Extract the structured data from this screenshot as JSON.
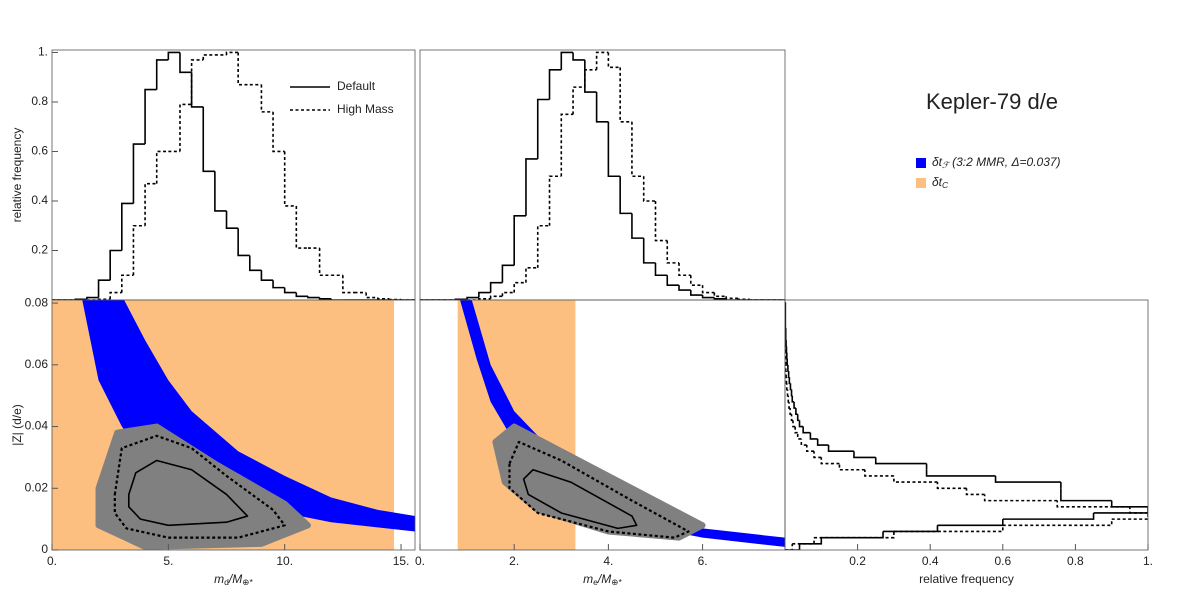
{
  "figure": {
    "title": "Kepler-79 d/e",
    "legend": [
      {
        "parts": [
          "δt",
          "ℱ",
          " (3:2 MMR, Δ=0.037)"
        ],
        "color": "#0000ff"
      },
      {
        "parts": [
          "δt",
          "C"
        ],
        "color": "#fdbf80"
      }
    ]
  },
  "chart_data": [
    {
      "type": "histogram",
      "ylabel": "relative frequency",
      "legend": "top-right",
      "xlim": [
        0,
        15.6
      ],
      "ylim": [
        0,
        1.01
      ],
      "yticks": [
        0.2,
        0.4,
        0.6,
        0.8,
        {
          "value": 1,
          "label": "1."
        }
      ],
      "bins": [
        0,
        0.5,
        1,
        1.5,
        2,
        2.5,
        3,
        3.5,
        4,
        4.5,
        5,
        5.5,
        6,
        6.5,
        7,
        7.5,
        8,
        8.5,
        9,
        9.5,
        10,
        10.5,
        11,
        11.5,
        12,
        12.5,
        13,
        13.5,
        14,
        14.5,
        15,
        15.5,
        16
      ],
      "series": [
        {
          "name": "Default",
          "color": "#000000",
          "dash": "solid",
          "values": [
            0,
            0,
            0.003,
            0.01,
            0.08,
            0.2,
            0.39,
            0.63,
            0.85,
            0.97,
            1.0,
            0.92,
            0.78,
            0.52,
            0.36,
            0.29,
            0.18,
            0.12,
            0.08,
            0.05,
            0.03,
            0.015,
            0.01,
            0.005,
            0,
            0,
            0,
            0,
            0,
            0,
            0,
            0
          ]
        },
        {
          "name": "High Mass",
          "color": "#000000",
          "dash": "dotted",
          "values": [
            0,
            0,
            0,
            0,
            0.003,
            0.03,
            0.1,
            0.3,
            0.47,
            0.6,
            0.6,
            0.79,
            0.97,
            0.99,
            0.99,
            1.0,
            0.87,
            0.87,
            0.76,
            0.6,
            0.38,
            0.21,
            0.21,
            0.1,
            0.1,
            0.03,
            0.03,
            0.01,
            0.005,
            0.002,
            0,
            0
          ]
        }
      ]
    },
    {
      "type": "histogram",
      "xlim": [
        0,
        7.75
      ],
      "ylim": [
        0,
        1.01
      ],
      "bins": [
        0,
        0.25,
        0.5,
        0.75,
        1,
        1.25,
        1.5,
        1.75,
        2,
        2.25,
        2.5,
        2.75,
        3,
        3.25,
        3.5,
        3.75,
        4,
        4.25,
        4.5,
        4.75,
        5,
        5.25,
        5.5,
        5.75,
        6,
        6.25,
        6.5,
        6.75,
        7,
        7.25,
        7.5,
        7.75
      ],
      "series": [
        {
          "color": "#000000",
          "dash": "solid",
          "values": [
            0,
            0,
            0,
            0.003,
            0.01,
            0.03,
            0.07,
            0.14,
            0.34,
            0.57,
            0.81,
            0.93,
            1.0,
            0.97,
            0.84,
            0.72,
            0.5,
            0.35,
            0.25,
            0.15,
            0.1,
            0.06,
            0.04,
            0.02,
            0.01,
            0.005,
            0,
            0,
            0,
            0,
            0
          ]
        },
        {
          "color": "#000000",
          "dash": "dotted",
          "values": [
            0,
            0,
            0,
            0,
            0,
            0.005,
            0.015,
            0.03,
            0.07,
            0.13,
            0.3,
            0.5,
            0.75,
            0.86,
            0.93,
            1.0,
            0.94,
            0.72,
            0.5,
            0.4,
            0.24,
            0.15,
            0.1,
            0.06,
            0.03,
            0.015,
            0.007,
            0.003,
            0,
            0,
            0
          ]
        }
      ]
    },
    {
      "type": "density",
      "ylabel": "|Z| (d/e)",
      "xlabel": [
        "m",
        "d",
        "/M",
        "⊕*"
      ],
      "xlim": [
        0,
        15.6
      ],
      "ylim": [
        0,
        0.081
      ],
      "xticks": [
        {
          "value": 0,
          "label": "0."
        },
        {
          "value": 5,
          "label": "5."
        },
        {
          "value": 10,
          "label": "10."
        },
        {
          "value": 15,
          "label": "15."
        }
      ],
      "yticks": [
        0,
        0.02,
        0.04,
        0.06,
        0.08
      ],
      "region": {
        "color": "#fdbf80",
        "x": [
          0,
          14.7
        ],
        "y": [
          0,
          0.081
        ]
      },
      "band": {
        "color": "#0000ff",
        "upper": {
          "x": [
            3.1,
            4,
            5,
            6,
            8,
            10,
            12,
            14,
            15.6
          ],
          "y": [
            0.081,
            0.068,
            0.055,
            0.045,
            0.032,
            0.024,
            0.017,
            0.013,
            0.011
          ]
        },
        "lower": {
          "x": [
            1.3,
            2,
            3,
            4,
            6,
            8,
            10,
            12,
            15.6
          ],
          "y": [
            0.081,
            0.055,
            0.04,
            0.03,
            0.02,
            0.016,
            0.012,
            0.009,
            0.006
          ]
        }
      },
      "cloud": {
        "color": "#808080",
        "x": [
          2,
          2.8,
          4.5,
          7,
          10,
          11,
          9,
          4,
          2
        ],
        "y": [
          0.02,
          0.038,
          0.04,
          0.028,
          0.015,
          0.008,
          0.002,
          0.001,
          0.008
        ]
      },
      "contours": [
        {
          "dash": "dotted",
          "x": [
            2.7,
            3,
            4.5,
            6,
            7.5,
            9.5,
            10,
            8,
            5,
            3.2,
            2.7
          ],
          "y": [
            0.018,
            0.033,
            0.037,
            0.033,
            0.024,
            0.013,
            0.008,
            0.004,
            0.004,
            0.007,
            0.012
          ]
        },
        {
          "dash": "solid",
          "x": [
            3.3,
            3.6,
            4.5,
            6,
            7.5,
            8.4,
            7.5,
            5,
            3.8,
            3.3
          ],
          "y": [
            0.018,
            0.025,
            0.029,
            0.026,
            0.018,
            0.011,
            0.009,
            0.008,
            0.01,
            0.014
          ]
        }
      ]
    },
    {
      "type": "density",
      "xlabel": [
        "m",
        "e",
        "/M",
        "⊕*"
      ],
      "xlim": [
        0,
        7.75
      ],
      "ylim": [
        0,
        0.081
      ],
      "xticks": [
        {
          "value": 0,
          "label": "0."
        },
        {
          "value": 2,
          "label": "2."
        },
        {
          "value": 4,
          "label": "4."
        },
        {
          "value": 6,
          "label": "6."
        }
      ],
      "region": {
        "color": "#fdbf80",
        "x": [
          0.8,
          3.3
        ],
        "y": [
          0,
          0.081
        ]
      },
      "band": {
        "color": "#0000ff",
        "upper": {
          "x": [
            1.1,
            1.5,
            2,
            2.5,
            3,
            4,
            5,
            6,
            7.75
          ],
          "y": [
            0.081,
            0.06,
            0.045,
            0.037,
            0.031,
            0.021,
            0.013,
            0.007,
            0.004
          ]
        },
        "lower": {
          "x": [
            0.85,
            1.2,
            1.5,
            2,
            3,
            4,
            5,
            6,
            7.75
          ],
          "y": [
            0.081,
            0.062,
            0.048,
            0.035,
            0.02,
            0.012,
            0.007,
            0.004,
            0.001
          ]
        }
      },
      "cloud": {
        "color": "#808080",
        "x": [
          1.6,
          2,
          3,
          4.5,
          6,
          5.5,
          4,
          2.5,
          1.8
        ],
        "y": [
          0.035,
          0.04,
          0.032,
          0.02,
          0.008,
          0.004,
          0.006,
          0.013,
          0.022
        ]
      },
      "contours": [
        {
          "dash": "dotted",
          "x": [
            1.9,
            2.1,
            3,
            4.5,
            5.7,
            5.4,
            4,
            2.5,
            1.9
          ],
          "y": [
            0.028,
            0.035,
            0.029,
            0.016,
            0.006,
            0.004,
            0.006,
            0.012,
            0.02
          ]
        },
        {
          "dash": "solid",
          "x": [
            2.2,
            2.4,
            3.2,
            4.5,
            4.6,
            4.2,
            3,
            2.3
          ],
          "y": [
            0.023,
            0.026,
            0.022,
            0.011,
            0.008,
            0.007,
            0.012,
            0.018
          ]
        }
      ]
    },
    {
      "type": "histogram",
      "orientation": "horizontal",
      "xlabel": "relative frequency",
      "xlim": [
        0,
        1.0
      ],
      "ylim": [
        0,
        0.081
      ],
      "xticks": [
        0.2,
        0.4,
        0.6,
        0.8,
        {
          "value": 1,
          "label": "1."
        }
      ],
      "bins": [
        0,
        0.002,
        0.004,
        0.006,
        0.008,
        0.01,
        0.012,
        0.014,
        0.016,
        0.018,
        0.02,
        0.022,
        0.024,
        0.026,
        0.028,
        0.03,
        0.032,
        0.034,
        0.036,
        0.038,
        0.04,
        0.042,
        0.044,
        0.046,
        0.048,
        0.05,
        0.052,
        0.054,
        0.056,
        0.058,
        0.06,
        0.062,
        0.064,
        0.066,
        0.068,
        0.07,
        0.072,
        0.074,
        0.076,
        0.078,
        0.08
      ],
      "series": [
        {
          "color": "#000000",
          "dash": "solid",
          "values": [
            0.04,
            0.1,
            0.27,
            0.42,
            0.6,
            0.85,
            1.0,
            0.9,
            0.76,
            0.76,
            0.76,
            0.58,
            0.39,
            0.39,
            0.25,
            0.19,
            0.12,
            0.09,
            0.07,
            0.05,
            0.04,
            0.035,
            0.03,
            0.025,
            0.02,
            0.018,
            0.015,
            0.012,
            0.01,
            0.008,
            0.006,
            0.005,
            0.004,
            0.003,
            0.002,
            0.002,
            0.001,
            0.001,
            0.001,
            0.001
          ]
        },
        {
          "color": "#000000",
          "dash": "dotted",
          "values": [
            0.02,
            0.08,
            0.3,
            0.6,
            0.9,
            1.0,
            0.95,
            0.75,
            0.55,
            0.5,
            0.42,
            0.3,
            0.22,
            0.15,
            0.1,
            0.08,
            0.06,
            0.045,
            0.035,
            0.028,
            0.022,
            0.018,
            0.014,
            0.011,
            0.009,
            0.007,
            0.005,
            0.004,
            0.003,
            0.002,
            0.002,
            0.001,
            0.001,
            0.001,
            0.001,
            0,
            0,
            0,
            0,
            0
          ]
        }
      ]
    }
  ]
}
